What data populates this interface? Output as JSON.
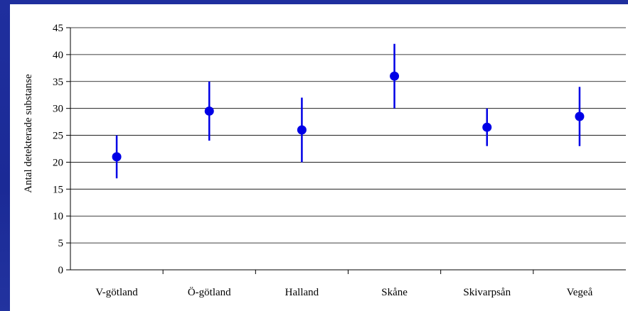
{
  "chart_data": {
    "type": "scatter",
    "title": "",
    "xlabel": "",
    "ylabel": "Antal detekterade substanse",
    "categories": [
      "V-götland",
      "Ö-götland",
      "Halland",
      "Skåne",
      "Skivarpsån",
      "Vegeå"
    ],
    "series": [
      {
        "values": [
          21,
          29.5,
          26,
          36,
          26.5,
          28.5
        ],
        "low": [
          17,
          24,
          20,
          30,
          23,
          23
        ],
        "high": [
          25,
          35,
          32,
          42,
          30,
          34
        ]
      }
    ],
    "ylim": [
      0,
      45
    ],
    "yticks": [
      "0",
      "5",
      "10",
      "15",
      "20",
      "25",
      "30",
      "35",
      "40",
      "45"
    ],
    "grid": true,
    "legend": "none",
    "colors": {
      "series": "#0000e6",
      "grid": "#000000",
      "background": "#1b2a96"
    }
  }
}
